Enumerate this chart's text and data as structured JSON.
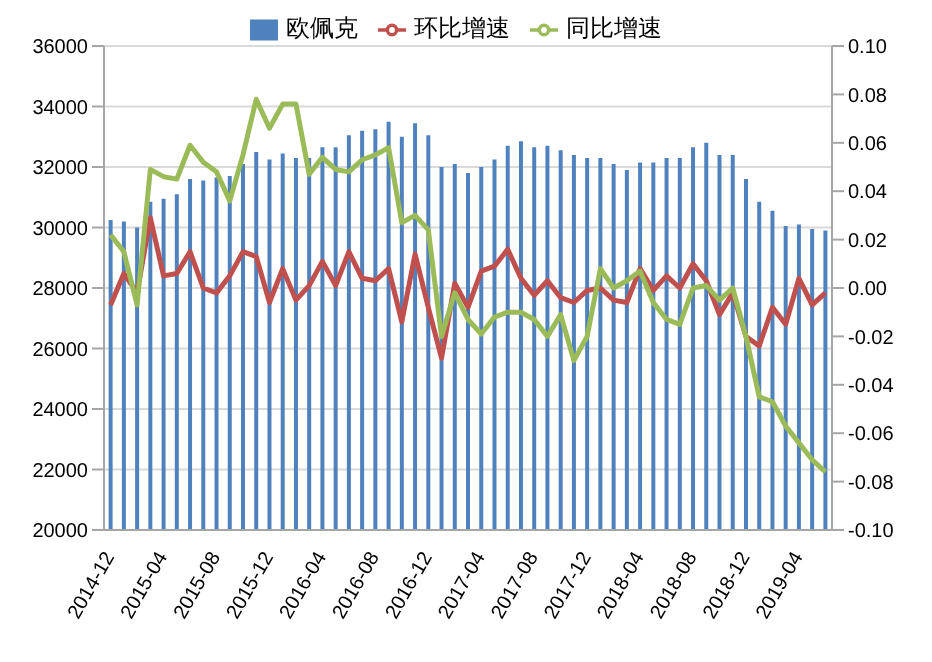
{
  "chart_data": {
    "type": "bar",
    "categories": [
      "2014-12",
      null,
      null,
      null,
      "2015-04",
      null,
      null,
      null,
      "2015-08",
      null,
      null,
      null,
      "2015-12",
      null,
      null,
      null,
      "2016-04",
      null,
      null,
      null,
      "2016-08",
      null,
      null,
      null,
      "2016-12",
      null,
      null,
      null,
      "2017-04",
      null,
      null,
      null,
      "2017-08",
      null,
      null,
      null,
      "2017-12",
      null,
      null,
      null,
      "2018-04",
      null,
      null,
      null,
      "2018-08",
      null,
      null,
      null,
      "2018-12",
      null,
      null,
      null,
      "2019-04",
      null,
      null
    ],
    "series": [
      {
        "name": "欧佩克",
        "color": "#4f81bd",
        "values": [
          30250,
          30200,
          30000,
          30850,
          30950,
          31100,
          31600,
          31550,
          31650,
          31700,
          32100,
          32500,
          32250,
          32450,
          32300,
          32300,
          32650,
          32650,
          33050,
          33200,
          33250,
          33500,
          33000,
          33450,
          33050,
          32000,
          32100,
          31800,
          32000,
          32250,
          32700,
          32850,
          32650,
          32700,
          32550,
          32400,
          32300,
          32300,
          32100,
          31900,
          32150,
          32150,
          32300,
          32300,
          32650,
          32800,
          32400,
          32400,
          31600,
          30850,
          30550,
          30050,
          30100,
          29950,
          29900
        ]
      },
      {
        "name": "环比增速",
        "type": "line",
        "axis": "y2",
        "color": "#c0504d",
        "values": [
          -0.007,
          0.006,
          -0.002,
          0.029,
          0.005,
          0.006,
          0.015,
          0.0,
          -0.002,
          0.005,
          0.015,
          0.013,
          -0.006,
          0.008,
          -0.005,
          0.001,
          0.011,
          0.001,
          0.015,
          0.004,
          0.003,
          0.008,
          -0.014,
          0.014,
          -0.008,
          -0.029,
          0.002,
          -0.008,
          0.007,
          0.009,
          0.016,
          0.004,
          -0.003,
          0.003,
          -0.004,
          -0.006,
          -0.001,
          0.0,
          -0.005,
          -0.006,
          0.008,
          -0.001,
          0.005,
          0.0,
          0.01,
          0.003,
          -0.011,
          -0.002,
          -0.02,
          -0.024,
          -0.008,
          -0.015,
          0.004,
          -0.007,
          -0.002
        ]
      },
      {
        "name": "同比增速",
        "type": "line",
        "axis": "y2",
        "color": "#9bbb59",
        "values": [
          0.022,
          0.015,
          -0.007,
          0.049,
          0.046,
          0.045,
          0.059,
          0.052,
          0.048,
          0.036,
          0.055,
          0.078,
          0.066,
          0.076,
          0.076,
          0.047,
          0.054,
          0.049,
          0.048,
          0.053,
          0.055,
          0.058,
          0.027,
          0.03,
          0.024,
          -0.02,
          -0.002,
          -0.013,
          -0.019,
          -0.012,
          -0.01,
          -0.01,
          -0.013,
          -0.02,
          -0.011,
          -0.03,
          -0.02,
          0.008,
          0.0,
          0.003,
          0.007,
          -0.006,
          -0.013,
          -0.015,
          0.0,
          0.001,
          -0.005,
          0.0,
          -0.02,
          -0.045,
          -0.047,
          -0.057,
          -0.064,
          -0.071,
          -0.076
        ]
      }
    ],
    "ylim": [
      20000,
      36000
    ],
    "yticks": [
      20000,
      22000,
      24000,
      26000,
      28000,
      30000,
      32000,
      34000,
      36000
    ],
    "y2lim": [
      -0.1,
      0.1
    ],
    "y2ticks": [
      {
        "value": -0.1,
        "label": "-0.10"
      },
      {
        "value": -0.08,
        "label": "-0.08"
      },
      {
        "value": -0.06,
        "label": "-0.06"
      },
      {
        "value": -0.04,
        "label": "-0.04"
      },
      {
        "value": -0.02,
        "label": "-0.02"
      },
      {
        "value": 0,
        "label": "0.00"
      },
      {
        "value": 0.02,
        "label": "0.02"
      },
      {
        "value": 0.04,
        "label": "0.04"
      },
      {
        "value": 0.06,
        "label": "0.06"
      },
      {
        "value": 0.08,
        "label": "0.08"
      },
      {
        "value": 0.1,
        "label": "0.10"
      }
    ],
    "grid": "y",
    "legend": "top",
    "marker": "none",
    "line_style": "solid"
  }
}
